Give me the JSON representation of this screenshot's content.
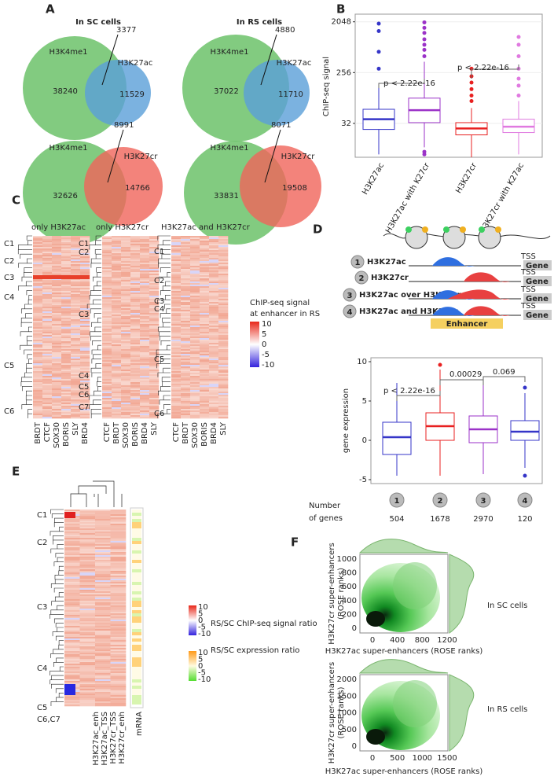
{
  "panel_a": {
    "letter": "A",
    "headers": [
      "In SC cells",
      "In RS cells"
    ],
    "venns": [
      {
        "left": "H3K4me1",
        "right": "H3K27ac",
        "left_only": "38240",
        "overlap": "3377",
        "right_only": "11529"
      },
      {
        "left": "H3K4me1",
        "right": "H3K27ac",
        "left_only": "37022",
        "overlap": "4880",
        "right_only": "11710"
      },
      {
        "left": "H3K4me1",
        "right": "H3K27cr",
        "left_only": "32626",
        "overlap": "8991",
        "right_only": "14766"
      },
      {
        "left": "H3K4me1",
        "right": "H3K27cr",
        "left_only": "33831",
        "overlap": "8071",
        "right_only": "19508"
      }
    ]
  },
  "panel_b": {
    "letter": "B",
    "y_label": "ChIP-seq signal",
    "log_scale": true,
    "ylim": [
      8,
      2800
    ],
    "yticks": [
      32,
      256,
      2048
    ],
    "p_values": [
      "p < 2.22e-16",
      "p < 2.22e-16"
    ],
    "boxes": [
      {
        "name": "H3K27ac",
        "color": "#3535c8",
        "low": 9,
        "q1": 25,
        "median": 38,
        "q3": 57,
        "high": 140,
        "outliers": [
          300,
          600,
          1400,
          1900
        ]
      },
      {
        "name": "H3K27ac with K27cr",
        "color": "#9b32c8",
        "low": 12,
        "q1": 33,
        "median": 55,
        "q3": 90,
        "high": 400,
        "outliers": [
          9,
          10,
          500,
          650,
          800,
          1000,
          1300,
          1600,
          2000
        ]
      },
      {
        "name": "H3K27cr",
        "color": "#e82020",
        "low": 8,
        "q1": 20,
        "median": 26,
        "q3": 33,
        "high": 60,
        "outliers": [
          80,
          100,
          130,
          170,
          220,
          300
        ]
      },
      {
        "name": "H3K27cr with K27ac",
        "color": "#e07ae0",
        "low": 9,
        "q1": 22,
        "median": 28,
        "q3": 38,
        "high": 80,
        "outliers": [
          100,
          150,
          200,
          300,
          500,
          800,
          1100
        ]
      }
    ]
  },
  "panel_c": {
    "letter": "C",
    "titles": [
      "only H3K27ac",
      "only H3K27cr",
      "H3K27ac and H3K27cr"
    ],
    "clusters": [
      [
        "C1",
        "C2",
        "C3",
        "C4",
        "C5",
        "C6"
      ],
      [
        "C1",
        "C2",
        "C3",
        "C4",
        "C5",
        "C6",
        "C7"
      ],
      [
        "C1",
        "C2",
        "C3",
        "C4",
        "C5",
        "C6"
      ]
    ],
    "columns": [
      [
        "BRDT",
        "CTCF",
        "SOX30",
        "BORIS",
        "SLY",
        "BRD4"
      ],
      [
        "CTCF",
        "BRDT",
        "SOX30",
        "BORIS",
        "BRD4",
        "SLY"
      ],
      [
        "CTCF",
        "BRDT",
        "SOX30",
        "BORIS",
        "BRD4",
        "SLY"
      ]
    ],
    "legend_title": [
      "ChIP-seq signal",
      "at enhancer in RS"
    ],
    "legend_ticks": [
      "10",
      "5",
      "0",
      "-5",
      "-10"
    ]
  },
  "panel_d": {
    "letter": "D",
    "rows": [
      {
        "badge": "1",
        "label": "H3K27ac"
      },
      {
        "badge": "2",
        "label": "H3K27cr"
      },
      {
        "badge": "3",
        "label": "H3K27ac over H3K27cr"
      },
      {
        "badge": "4",
        "label": "H3K27ac and H3K27cr"
      }
    ],
    "tss": "TSS",
    "gene": "Gene",
    "enhancer": "Enhancer",
    "y_label": "gene expression",
    "ylim": [
      -5.5,
      10.5
    ],
    "yticks": [
      -5,
      0,
      5,
      10
    ],
    "p_values": [
      "p < 2.22e-16",
      "0.00029",
      "0.069"
    ],
    "genes_label": [
      "Number",
      "of genes"
    ],
    "boxes": [
      {
        "badge": "1",
        "count": "504",
        "color": "#3535c8",
        "low": -4.5,
        "q1": -1.8,
        "median": 0.4,
        "q3": 2.3,
        "high": 7.3,
        "outliers": []
      },
      {
        "badge": "2",
        "count": "1678",
        "color": "#e82020",
        "low": -4.5,
        "q1": 0,
        "median": 1.8,
        "q3": 3.5,
        "high": 9,
        "outliers": [
          9.6
        ]
      },
      {
        "badge": "3",
        "count": "2970",
        "color": "#9b32c8",
        "low": -4.3,
        "q1": -0.3,
        "median": 1.4,
        "q3": 3.1,
        "high": 7.5,
        "outliers": []
      },
      {
        "badge": "4",
        "count": "120",
        "color": "#3535c8",
        "low": -3.5,
        "q1": 0,
        "median": 1.1,
        "q3": 2.5,
        "high": 6,
        "outliers": [
          6.7,
          -4.5
        ]
      }
    ]
  },
  "panel_e": {
    "letter": "E",
    "clusters": [
      "C1",
      "C2",
      "C3",
      "C4",
      "C5",
      "C6,C7"
    ],
    "columns": [
      "H3K27ac_enh",
      "H3K27ac_TSS",
      "H3K27cr_TSS",
      "H3K27cr_enh"
    ],
    "extra_column": "mRNA",
    "legend1": "RS/SC ChIP-seq signal ratio",
    "legend2": "RS/SC expression ratio",
    "legend_ticks": [
      "10",
      "5",
      "0",
      "-5",
      "-10"
    ]
  },
  "panel_f": {
    "letter": "F",
    "plots": [
      {
        "caption": "In SC cells",
        "y_label": [
          "H3K27cr super-enhancers",
          "(ROSE ranks)"
        ],
        "x_label": "H3K27ac super-enhancers (ROSE ranks)",
        "yticks": [
          "1000",
          "800",
          "600",
          "400",
          "200",
          "0"
        ],
        "xticks": [
          "0",
          "400",
          "800",
          "1200"
        ]
      },
      {
        "caption": "In RS cells",
        "y_label": [
          "H3K27cr super-enhancers",
          "(ROSE ranks)"
        ],
        "x_label": "H3K27ac super-enhancers (ROSE ranks)",
        "yticks": [
          "2000",
          "1500",
          "1000",
          "500",
          "0"
        ],
        "xticks": [
          "0",
          "500",
          "1000",
          "1500"
        ]
      }
    ]
  }
}
